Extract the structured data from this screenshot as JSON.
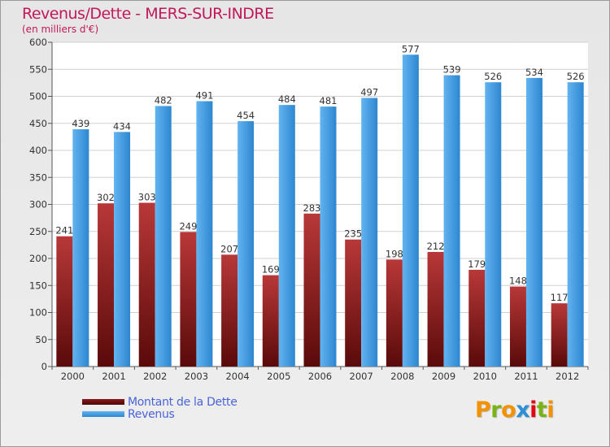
{
  "title": "Revenus/Dette - MERS-SUR-INDRE",
  "subtitle": "(en milliers d'€)",
  "colors": {
    "debt_dark": "#5a0a0a",
    "debt_light": "#b83838",
    "revenue_dark": "#2d86cf",
    "revenue_light": "#62b4f0",
    "title": "#c2185b",
    "legend_text": "#4a64d8"
  },
  "legend": {
    "debt_label": "Montant de la Dette",
    "revenue_label": "Revenus",
    "placement": "bottom-left"
  },
  "logo": {
    "text": "Proxiti",
    "letter_colors": [
      "#f39200",
      "#7ab317",
      "#f39200",
      "#2d8fd5",
      "#e30613",
      "#7ab317",
      "#f39200"
    ],
    "icon": "proxiti-logo"
  },
  "chart_data": {
    "type": "bar",
    "categories": [
      "2000",
      "2001",
      "2002",
      "2003",
      "2004",
      "2005",
      "2006",
      "2007",
      "2008",
      "2009",
      "2010",
      "2011",
      "2012"
    ],
    "series": [
      {
        "name": "Montant de la Dette",
        "values": [
          241,
          302,
          303,
          249,
          207,
          169,
          283,
          235,
          198,
          212,
          179,
          148,
          117
        ]
      },
      {
        "name": "Revenus",
        "values": [
          439,
          434,
          482,
          491,
          454,
          484,
          481,
          497,
          577,
          539,
          526,
          534,
          526
        ]
      }
    ],
    "ylim": [
      0,
      600
    ],
    "yticks": [
      0,
      50,
      100,
      150,
      200,
      250,
      300,
      350,
      400,
      450,
      500,
      550,
      600
    ],
    "grid": true,
    "xlabel": "",
    "ylabel": ""
  }
}
